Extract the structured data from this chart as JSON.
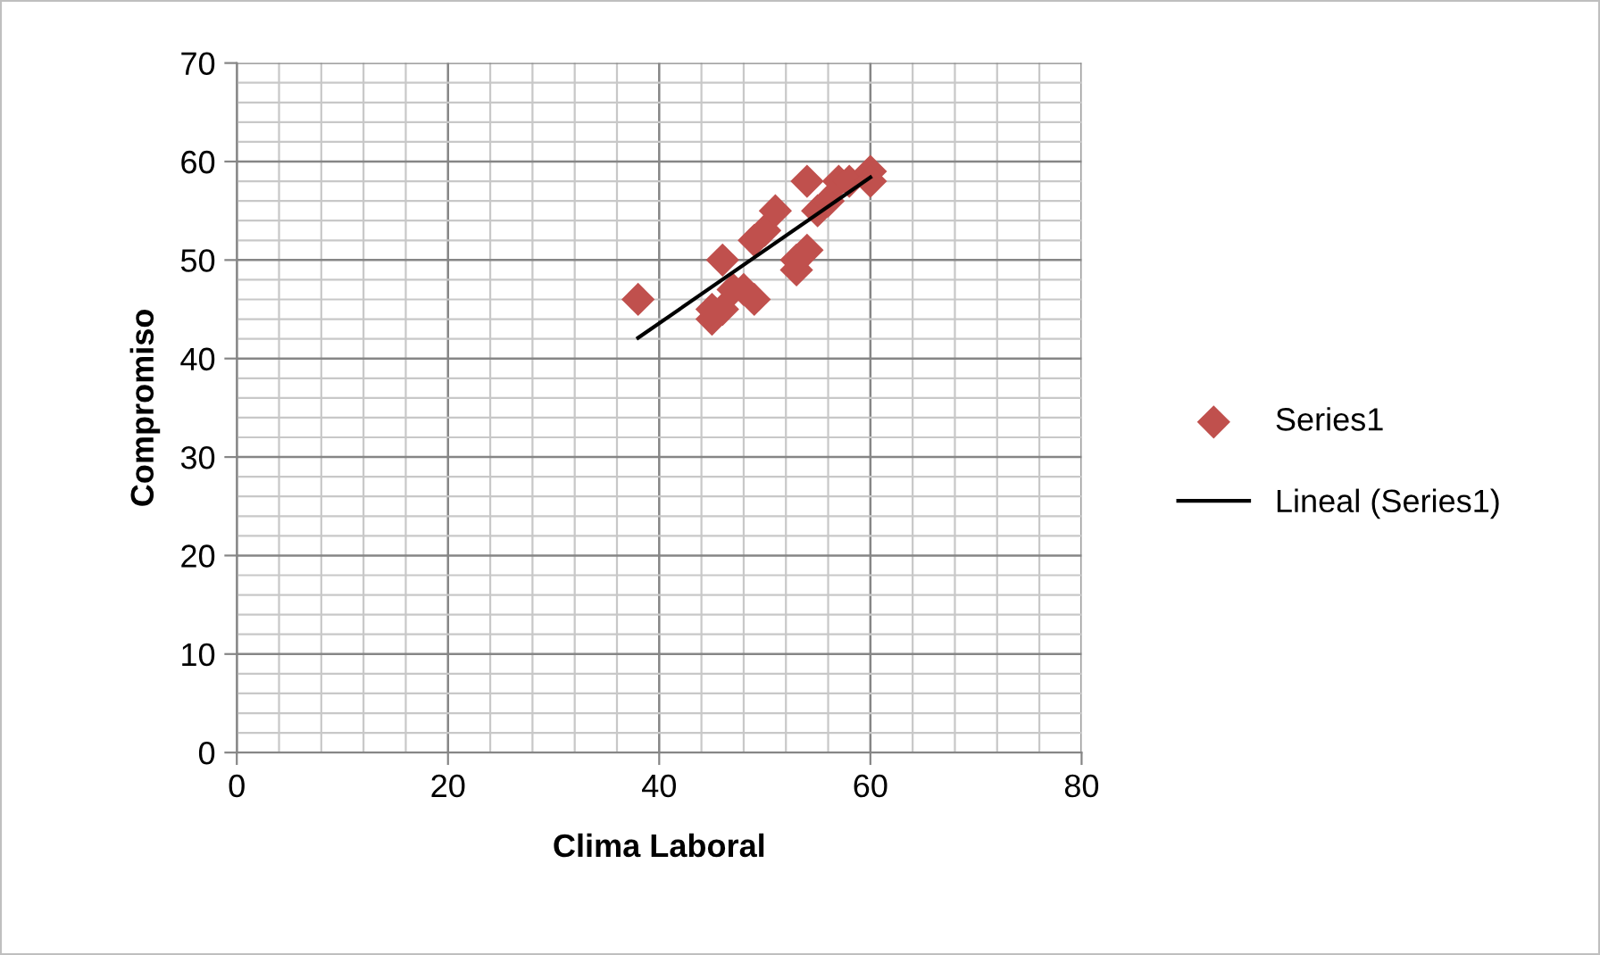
{
  "chart_data": {
    "type": "scatter",
    "xlabel": "Clima Laboral",
    "ylabel": "Compromiso",
    "xlim": [
      0,
      80
    ],
    "xticks": [
      0,
      20,
      40,
      60,
      80
    ],
    "ylim": [
      0,
      70
    ],
    "yticks": [
      0,
      10,
      20,
      30,
      40,
      50,
      60,
      70
    ],
    "grid": true,
    "legend": "right",
    "series": [
      {
        "name": "Series1",
        "marker": "diamond",
        "color": "#c0504d",
        "x": [
          38,
          45,
          45,
          46,
          46,
          47,
          48,
          49,
          49,
          50,
          51,
          53,
          53,
          54,
          54,
          55,
          56,
          57,
          58,
          60,
          60
        ],
        "values": [
          46,
          44,
          45,
          45,
          50,
          47,
          47,
          46,
          52,
          53,
          55,
          49,
          50,
          51,
          58,
          55,
          56,
          58,
          58,
          59,
          58
        ]
      },
      {
        "name": "Lineal (Series1)",
        "type": "line",
        "marker": "none",
        "color": "#000000",
        "x": [
          38,
          60
        ],
        "values": [
          42.1,
          58.4
        ]
      }
    ]
  }
}
